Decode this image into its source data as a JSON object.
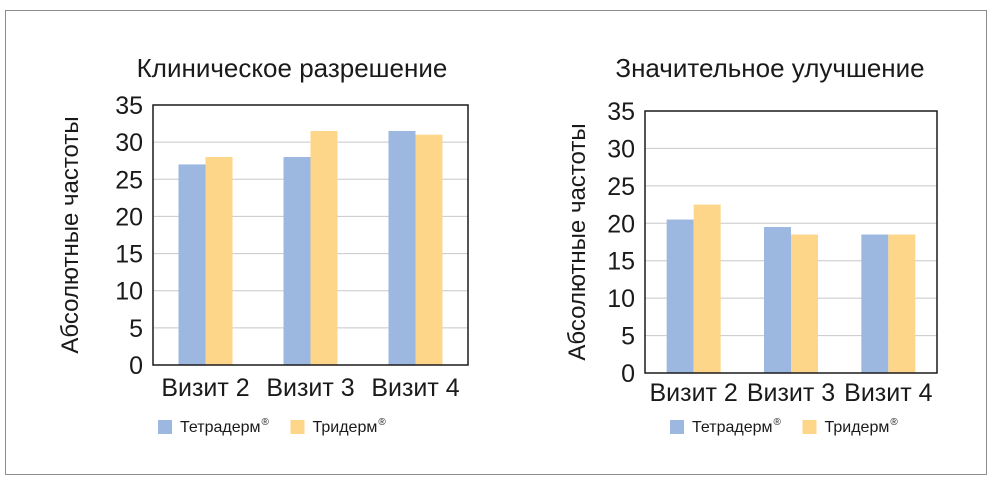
{
  "chart_data": [
    {
      "type": "bar",
      "title": "Клиническое разрешение",
      "ylabel": "Абсолютные частоты",
      "xlabel": "",
      "categories": [
        "Визит 2",
        "Визит 3",
        "Визит 4"
      ],
      "ylim": [
        0,
        35
      ],
      "yticks": [
        0,
        5,
        10,
        15,
        20,
        25,
        30,
        35
      ],
      "grid": true,
      "legend_position": "bottom",
      "series": [
        {
          "name": "Тетрадерм",
          "name_sup": "®",
          "color": "#9db8e0",
          "values": [
            27,
            28,
            31.5
          ]
        },
        {
          "name": "Тридерм",
          "name_sup": "®",
          "color": "#fdd68a",
          "values": [
            28,
            31.5,
            31
          ]
        }
      ]
    },
    {
      "type": "bar",
      "title": "Значительное улучшение",
      "ylabel": "Абсолютные частоты",
      "xlabel": "",
      "categories": [
        "Визит 2",
        "Визит 3",
        "Визит 4"
      ],
      "ylim": [
        0,
        35
      ],
      "yticks": [
        0,
        5,
        10,
        15,
        20,
        25,
        30,
        35
      ],
      "grid": true,
      "legend_position": "bottom",
      "series": [
        {
          "name": "Тетрадерм",
          "name_sup": "®",
          "color": "#9db8e0",
          "values": [
            20.5,
            19.5,
            18.5
          ]
        },
        {
          "name": "Тридерм",
          "name_sup": "®",
          "color": "#fdd68a",
          "values": [
            22.5,
            18.5,
            18.5
          ]
        }
      ]
    }
  ]
}
